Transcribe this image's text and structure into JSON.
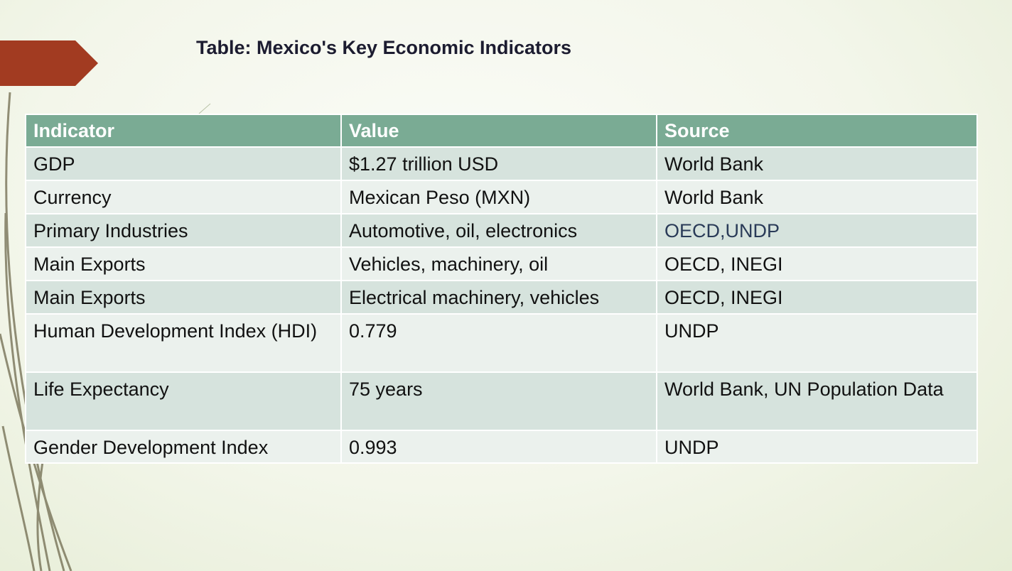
{
  "header": {
    "title": "Table: Mexico's Key Economic Indicators"
  },
  "table": {
    "headers": [
      "Indicator",
      "Value",
      "Source"
    ],
    "rows": [
      [
        "GDP",
        "$1.27 trillion USD",
        "World Bank"
      ],
      [
        "Currency",
        "Mexican Peso (MXN)",
        "World Bank"
      ],
      [
        "Primary Industries",
        "Automotive, oil, electronics",
        "OECD,UNDP"
      ],
      [
        "Main Exports",
        "Vehicles, machinery, oil",
        "OECD, INEGI"
      ],
      [
        "Main Exports",
        "Electrical machinery, vehicles",
        "OECD, INEGI"
      ],
      [
        "Human Development Index (HDI)",
        "0.779",
        "UNDP"
      ],
      [
        "Life Expectancy",
        "75 years",
        "World Bank, UN Population Data"
      ],
      [
        "Gender Development Index",
        "0.993",
        "UNDP"
      ]
    ]
  }
}
